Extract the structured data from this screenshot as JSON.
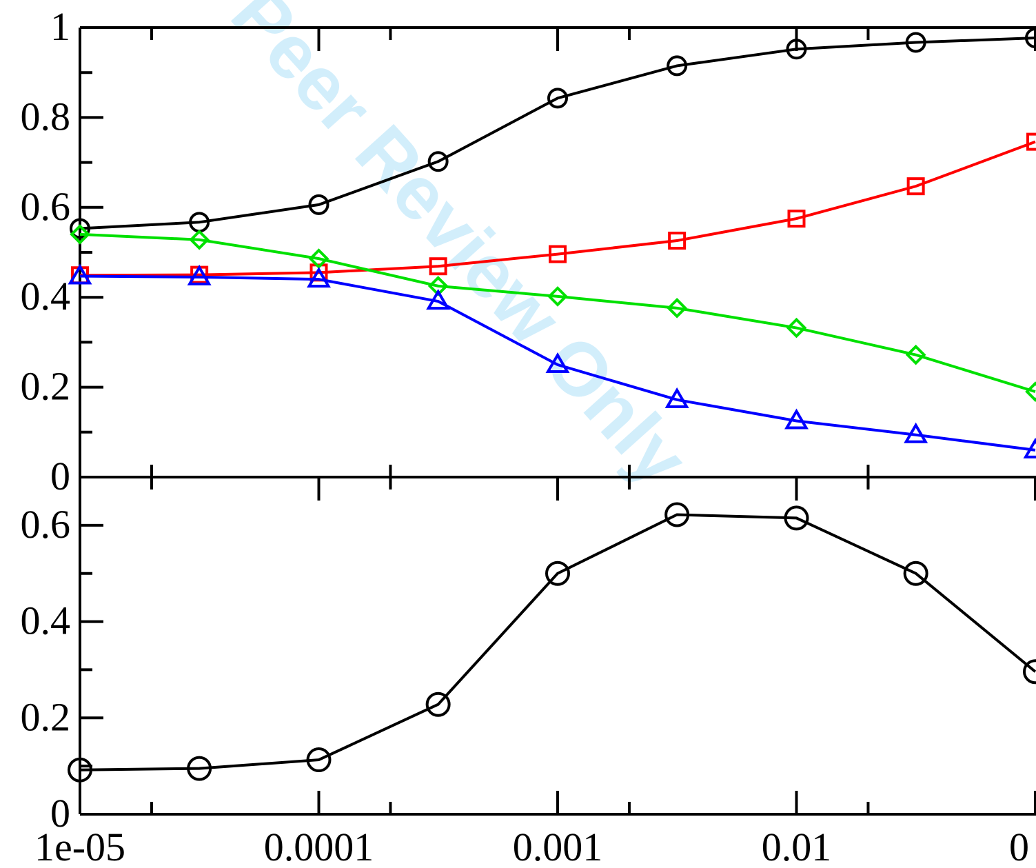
{
  "watermark": "Peer Review Only",
  "colors": {
    "axis": "#000000",
    "watermark": "#7fd0f5"
  },
  "chart_data": [
    {
      "type": "line",
      "panel": "top",
      "xscale": "log",
      "xlim": [
        1e-05,
        0.1
      ],
      "ylim": [
        0,
        1
      ],
      "x": [
        1e-05,
        3.16e-05,
        0.0001,
        0.000316,
        0.001,
        0.00316,
        0.01,
        0.0316,
        0.1
      ],
      "ytick_labels": [
        "0",
        "0.2",
        "0.4",
        "0.6",
        "0.8",
        "1"
      ],
      "yticks": [
        0,
        0.2,
        0.4,
        0.6,
        0.8,
        1
      ],
      "series": [
        {
          "color": "#000000",
          "marker": "circle",
          "values": [
            0.553,
            0.567,
            0.606,
            0.702,
            0.843,
            0.915,
            0.952,
            0.967,
            0.977
          ]
        },
        {
          "color": "#ff0000",
          "marker": "square",
          "values": [
            0.449,
            0.45,
            0.455,
            0.469,
            0.496,
            0.526,
            0.575,
            0.647,
            0.746
          ]
        },
        {
          "color": "#00e000",
          "marker": "diamond",
          "values": [
            0.54,
            0.528,
            0.486,
            0.425,
            0.402,
            0.376,
            0.332,
            0.272,
            0.19
          ]
        },
        {
          "color": "#0000ff",
          "marker": "triangle",
          "values": [
            0.447,
            0.445,
            0.44,
            0.391,
            0.25,
            0.172,
            0.125,
            0.094,
            0.06
          ]
        }
      ]
    },
    {
      "type": "line",
      "panel": "bottom",
      "xscale": "log",
      "xlim": [
        1e-05,
        0.1
      ],
      "ylim": [
        0,
        0.7
      ],
      "x": [
        1e-05,
        3.16e-05,
        0.0001,
        0.000316,
        0.001,
        0.00316,
        0.01,
        0.0316,
        0.1
      ],
      "ytick_labels": [
        "0",
        "0.2",
        "0.4",
        "0.6"
      ],
      "yticks": [
        0,
        0.2,
        0.4,
        0.6
      ],
      "xtick_labels": [
        "1e-05",
        "0.0001",
        "0.001",
        "0.01",
        "0"
      ],
      "series": [
        {
          "color": "#000000",
          "marker": "circle",
          "values": [
            0.092,
            0.095,
            0.113,
            0.228,
            0.5,
            0.622,
            0.615,
            0.5,
            0.296
          ]
        }
      ]
    }
  ]
}
